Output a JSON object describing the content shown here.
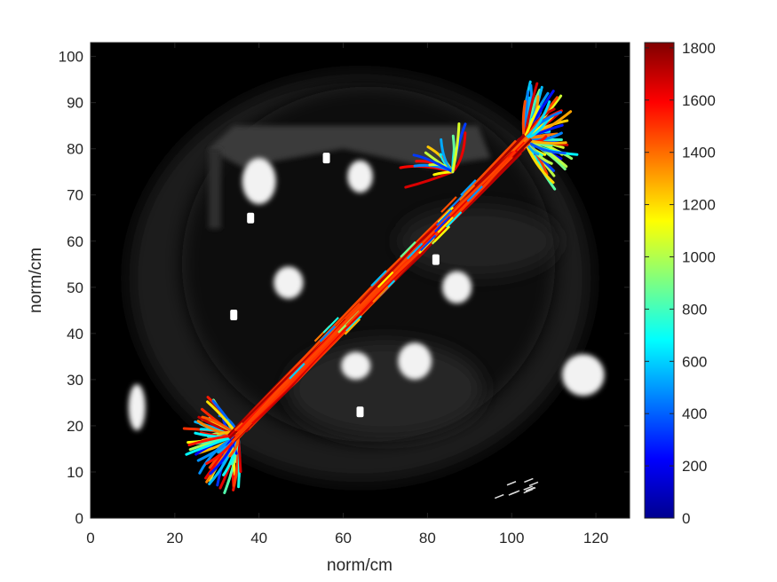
{
  "chart_data": {
    "type": "scatter",
    "title": "",
    "xlabel": "norm/cm",
    "ylabel": "norm/cm",
    "xlim": [
      0,
      128
    ],
    "ylim": [
      0,
      103
    ],
    "xticks": [
      0,
      20,
      40,
      60,
      80,
      100,
      120
    ],
    "yticks": [
      0,
      10,
      20,
      30,
      40,
      50,
      60,
      70,
      80,
      90,
      100
    ],
    "grid": false,
    "background": "grayscale CT image",
    "colorbar": {
      "range": [
        0,
        1820
      ],
      "ticks": [
        0,
        200,
        400,
        600,
        800,
        1000,
        1200,
        1400,
        1600,
        1800
      ],
      "colormap": "jet",
      "placement": "right"
    },
    "streamline_bundle": {
      "start": [
        33,
        17
      ],
      "end": [
        104,
        83
      ],
      "description_values": "dominant values 1400-1800 along the trunk, 200-1200 at the fanned ends"
    },
    "bright_regions": [
      {
        "x": 47,
        "y": 51,
        "rx": 3.5,
        "ry": 3.5
      },
      {
        "x": 87,
        "y": 50,
        "rx": 3.5,
        "ry": 3.5
      },
      {
        "x": 40,
        "y": 73,
        "rx": 4,
        "ry": 5
      },
      {
        "x": 64,
        "y": 74,
        "rx": 3,
        "ry": 3.5
      },
      {
        "x": 63,
        "y": 33,
        "rx": 3.5,
        "ry": 3
      },
      {
        "x": 77,
        "y": 34,
        "rx": 4,
        "ry": 4
      },
      {
        "x": 117,
        "y": 31,
        "rx": 5,
        "ry": 4.5
      },
      {
        "x": 11,
        "y": 24,
        "rx": 2,
        "ry": 5
      }
    ]
  }
}
